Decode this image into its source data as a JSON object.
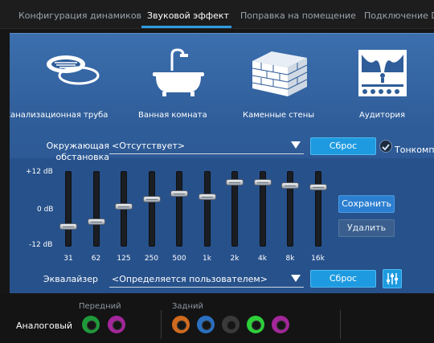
{
  "tabs": [
    {
      "label": "Конфигурация динамиков"
    },
    {
      "label": "Звуковой эффект"
    },
    {
      "label": "Поправка на помещение"
    },
    {
      "label": "Подключение DTS"
    }
  ],
  "environments": [
    {
      "label": "Канализационная труба",
      "icon": "sewer-pipe-icon"
    },
    {
      "label": "Ванная комната",
      "icon": "bathtub-icon"
    },
    {
      "label": "Каменные стены",
      "icon": "stone-walls-icon"
    },
    {
      "label": "Аудитория",
      "icon": "auditorium-icon"
    }
  ],
  "environment_row": {
    "label": "Окружающая обстановка",
    "value": "<Отсутствует>",
    "reset_label": "Сброс",
    "tonecomp_label": "Тонкомпенсация"
  },
  "equalizer": {
    "scale_top": "+12 dB",
    "scale_mid": "0 dB",
    "scale_bottom": "-12 dB",
    "bands": [
      {
        "freq": "31",
        "gain_db": -5
      },
      {
        "freq": "62",
        "gain_db": -3.5
      },
      {
        "freq": "125",
        "gain_db": 2
      },
      {
        "freq": "250",
        "gain_db": 4.5
      },
      {
        "freq": "500",
        "gain_db": 6.5
      },
      {
        "freq": "1k",
        "gain_db": 5.5
      },
      {
        "freq": "2k",
        "gain_db": 10.5
      },
      {
        "freq": "4k",
        "gain_db": 10.5
      },
      {
        "freq": "8k",
        "gain_db": 9.5
      },
      {
        "freq": "16k",
        "gain_db": 9
      }
    ],
    "save_label": "Сохранить",
    "delete_label": "Удалить",
    "label": "Эквалайзер",
    "preset_value": "<Определяется пользователем>",
    "reset_label": "Сброс"
  },
  "footer": {
    "analog_label": "Аналоговый",
    "front_label": "Передний",
    "rear_label": "Задний",
    "front_jacks": [
      "#1f9a3a",
      "#a3279a"
    ],
    "rear_jacks": [
      "#d06a1e",
      "#2a6fc0",
      "#3a3a3a",
      "#2ecf3a",
      "#a3279a"
    ]
  }
}
